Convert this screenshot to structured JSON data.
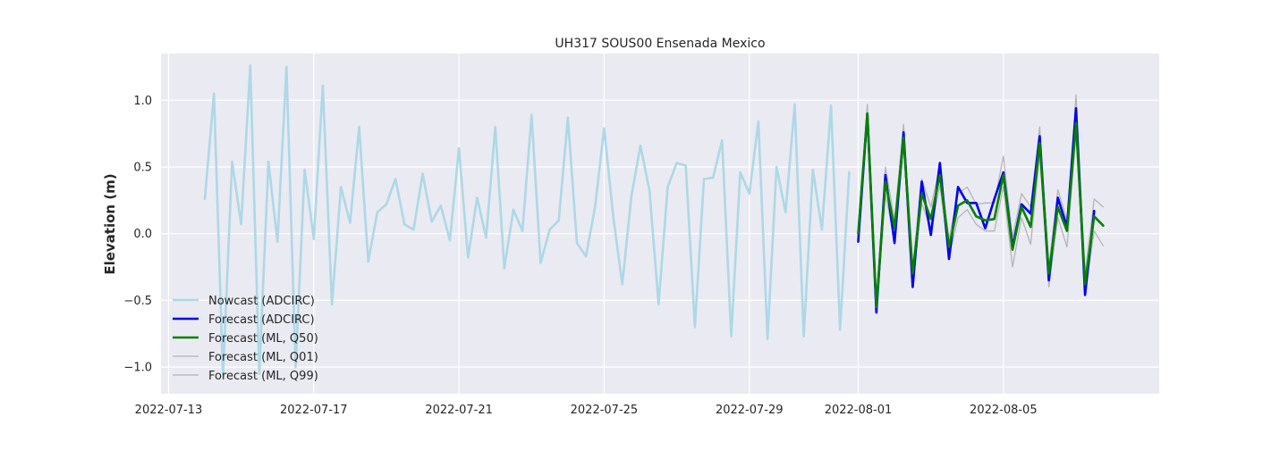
{
  "chart_data": {
    "type": "line",
    "title": "UH317 SOUS00 Ensenada Mexico",
    "xlabel": "",
    "ylabel": "Elevation (m)",
    "xlim": [
      "2022-07-12T19:00",
      "2022-08-09T07:00"
    ],
    "ylim": [
      -1.2,
      1.35
    ],
    "grid": true,
    "legend_position": "lower-left",
    "x_ticks": [
      "2022-07-13",
      "2022-07-17",
      "2022-07-21",
      "2022-07-25",
      "2022-07-29",
      "2022-08-01",
      "2022-08-05"
    ],
    "y_ticks": [
      1.0,
      0.5,
      0.0,
      -0.5,
      -1.0
    ],
    "y_tick_labels": [
      "1.0",
      "0.5",
      "0.0",
      "−0.5",
      "−1.0"
    ],
    "colors": {
      "nowcast": "#add8e6",
      "forecast_adcirc": "#0000ee",
      "forecast_q50": "#008000",
      "forecast_q01": "#b5b5b5",
      "forecast_q99": "#b5b5b5",
      "plot_background": "#eaeaf2",
      "grid": "#ffffff"
    },
    "series": [
      {
        "name": "Nowcast (ADCIRC)",
        "key": "nowcast",
        "x": [
          "2022-07-14T00:00",
          "2022-07-14T06:00",
          "2022-07-14T12:00",
          "2022-07-14T18:00",
          "2022-07-15T00:00",
          "2022-07-15T06:00",
          "2022-07-15T12:00",
          "2022-07-15T18:00",
          "2022-07-16T00:00",
          "2022-07-16T06:00",
          "2022-07-16T12:00",
          "2022-07-16T18:00",
          "2022-07-17T00:00",
          "2022-07-17T06:00",
          "2022-07-17T12:00",
          "2022-07-17T18:00",
          "2022-07-18T00:00",
          "2022-07-18T06:00",
          "2022-07-18T12:00",
          "2022-07-18T18:00",
          "2022-07-19T00:00",
          "2022-07-19T06:00",
          "2022-07-19T12:00",
          "2022-07-19T18:00",
          "2022-07-20T00:00",
          "2022-07-20T06:00",
          "2022-07-20T12:00",
          "2022-07-20T18:00",
          "2022-07-21T00:00",
          "2022-07-21T06:00",
          "2022-07-21T12:00",
          "2022-07-21T18:00",
          "2022-07-22T00:00",
          "2022-07-22T06:00",
          "2022-07-22T12:00",
          "2022-07-22T18:00",
          "2022-07-23T00:00",
          "2022-07-23T06:00",
          "2022-07-23T12:00",
          "2022-07-23T18:00",
          "2022-07-24T00:00",
          "2022-07-24T06:00",
          "2022-07-24T12:00",
          "2022-07-24T18:00",
          "2022-07-25T00:00",
          "2022-07-25T06:00",
          "2022-07-25T12:00",
          "2022-07-25T18:00",
          "2022-07-26T00:00",
          "2022-07-26T06:00",
          "2022-07-26T12:00",
          "2022-07-26T18:00",
          "2022-07-27T00:00",
          "2022-07-27T06:00",
          "2022-07-27T12:00",
          "2022-07-27T18:00",
          "2022-07-28T00:00",
          "2022-07-28T06:00",
          "2022-07-28T12:00",
          "2022-07-28T18:00",
          "2022-07-29T00:00",
          "2022-07-29T06:00",
          "2022-07-29T12:00",
          "2022-07-29T18:00",
          "2022-07-30T00:00",
          "2022-07-30T06:00",
          "2022-07-30T12:00",
          "2022-07-30T18:00",
          "2022-07-31T00:00",
          "2022-07-31T06:00",
          "2022-07-31T12:00",
          "2022-07-31T18:00"
        ],
        "y": [
          0.26,
          1.05,
          -1.07,
          0.54,
          0.07,
          1.26,
          -1.05,
          0.54,
          -0.06,
          1.25,
          -1.0,
          0.48,
          -0.04,
          1.11,
          -0.53,
          0.35,
          0.08,
          0.8,
          -0.21,
          0.16,
          0.22,
          0.41,
          0.07,
          0.03,
          0.45,
          0.09,
          0.21,
          -0.05,
          0.64,
          -0.18,
          0.27,
          -0.03,
          0.8,
          -0.26,
          0.18,
          0.02,
          0.89,
          -0.22,
          0.03,
          0.1,
          0.87,
          -0.07,
          -0.17,
          0.2,
          0.79,
          0.13,
          -0.38,
          0.28,
          0.66,
          0.32,
          -0.53,
          0.35,
          0.53,
          0.51,
          -0.7,
          0.41,
          0.42,
          0.7,
          -0.77,
          0.46,
          0.3,
          0.84,
          -0.79,
          0.5,
          0.16,
          0.97,
          -0.77,
          0.48,
          0.03,
          0.96,
          -0.72,
          0.46
        ]
      },
      {
        "name": "Forecast (ADCIRC)",
        "key": "forecast_adcirc",
        "x": [
          "2022-08-01T00:00",
          "2022-08-01T06:00",
          "2022-08-01T12:00",
          "2022-08-01T18:00",
          "2022-08-02T00:00",
          "2022-08-02T06:00",
          "2022-08-02T12:00",
          "2022-08-02T18:00",
          "2022-08-03T00:00",
          "2022-08-03T06:00",
          "2022-08-03T12:00",
          "2022-08-03T18:00",
          "2022-08-04T00:00",
          "2022-08-04T06:00",
          "2022-08-04T12:00",
          "2022-08-04T18:00",
          "2022-08-05T00:00",
          "2022-08-05T06:00",
          "2022-08-05T12:00",
          "2022-08-05T18:00",
          "2022-08-06T00:00",
          "2022-08-06T06:00",
          "2022-08-06T12:00",
          "2022-08-06T18:00",
          "2022-08-07T00:00",
          "2022-08-07T06:00",
          "2022-08-07T12:00",
          "2022-08-07T18:00"
        ],
        "y": [
          -0.06,
          0.9,
          -0.59,
          0.44,
          -0.07,
          0.76,
          -0.4,
          0.39,
          -0.01,
          0.53,
          -0.19,
          0.35,
          0.23,
          0.23,
          0.04,
          0.26,
          0.46,
          -0.1,
          0.22,
          0.15,
          0.73,
          -0.35,
          0.27,
          0.05,
          0.94,
          -0.46,
          0.17,
          null
        ]
      },
      {
        "name": "Forecast (ML, Q50)",
        "key": "forecast_q50",
        "x": [
          "2022-08-01T00:00",
          "2022-08-01T06:00",
          "2022-08-01T12:00",
          "2022-08-01T18:00",
          "2022-08-02T00:00",
          "2022-08-02T06:00",
          "2022-08-02T12:00",
          "2022-08-02T18:00",
          "2022-08-03T00:00",
          "2022-08-03T06:00",
          "2022-08-03T12:00",
          "2022-08-03T18:00",
          "2022-08-04T00:00",
          "2022-08-04T06:00",
          "2022-08-04T12:00",
          "2022-08-04T18:00",
          "2022-08-05T00:00",
          "2022-08-05T06:00",
          "2022-08-05T12:00",
          "2022-08-05T18:00",
          "2022-08-06T00:00",
          "2022-08-06T06:00",
          "2022-08-06T12:00",
          "2022-08-06T18:00",
          "2022-08-07T00:00",
          "2022-08-07T06:00",
          "2022-08-07T12:00",
          "2022-08-07T18:00"
        ],
        "y": [
          0.0,
          0.9,
          -0.55,
          0.39,
          0.04,
          0.72,
          -0.3,
          0.3,
          0.11,
          0.44,
          -0.1,
          0.21,
          0.25,
          0.13,
          0.1,
          0.11,
          0.44,
          -0.12,
          0.2,
          0.05,
          0.68,
          -0.3,
          0.2,
          0.02,
          0.83,
          -0.38,
          0.13,
          0.06
        ]
      },
      {
        "name": "Forecast (ML, Q01)",
        "key": "forecast_q01",
        "x": [
          "2022-08-01T00:00",
          "2022-08-01T06:00",
          "2022-08-01T12:00",
          "2022-08-01T18:00",
          "2022-08-02T00:00",
          "2022-08-02T06:00",
          "2022-08-02T12:00",
          "2022-08-02T18:00",
          "2022-08-03T00:00",
          "2022-08-03T06:00",
          "2022-08-03T12:00",
          "2022-08-03T18:00",
          "2022-08-04T00:00",
          "2022-08-04T06:00",
          "2022-08-04T12:00",
          "2022-08-04T18:00",
          "2022-08-05T00:00",
          "2022-08-05T06:00",
          "2022-08-05T12:00",
          "2022-08-05T18:00",
          "2022-08-06T00:00",
          "2022-08-06T06:00",
          "2022-08-06T12:00",
          "2022-08-06T18:00",
          "2022-08-07T00:00",
          "2022-08-07T06:00",
          "2022-08-07T12:00",
          "2022-08-07T18:00"
        ],
        "y": [
          -0.05,
          0.85,
          -0.6,
          0.3,
          -0.05,
          0.65,
          -0.38,
          0.23,
          0.03,
          0.36,
          -0.17,
          0.12,
          0.18,
          0.07,
          0.02,
          0.02,
          0.35,
          -0.25,
          0.12,
          -0.08,
          0.59,
          -0.4,
          0.12,
          -0.1,
          0.75,
          -0.45,
          0.02,
          -0.09
        ]
      },
      {
        "name": "Forecast (ML, Q99)",
        "key": "forecast_q99",
        "x": [
          "2022-08-01T00:00",
          "2022-08-01T06:00",
          "2022-08-01T12:00",
          "2022-08-01T18:00",
          "2022-08-02T00:00",
          "2022-08-02T06:00",
          "2022-08-02T12:00",
          "2022-08-02T18:00",
          "2022-08-03T00:00",
          "2022-08-03T06:00",
          "2022-08-03T12:00",
          "2022-08-03T18:00",
          "2022-08-04T00:00",
          "2022-08-04T06:00",
          "2022-08-04T12:00",
          "2022-08-04T18:00",
          "2022-08-05T00:00",
          "2022-08-05T06:00",
          "2022-08-05T12:00",
          "2022-08-05T18:00",
          "2022-08-06T00:00",
          "2022-08-06T06:00",
          "2022-08-06T12:00",
          "2022-08-06T18:00",
          "2022-08-07T00:00",
          "2022-08-07T06:00",
          "2022-08-07T12:00",
          "2022-08-07T18:00"
        ],
        "y": [
          0.05,
          0.97,
          -0.5,
          0.5,
          0.1,
          0.82,
          -0.25,
          0.41,
          0.2,
          0.5,
          -0.04,
          0.3,
          0.35,
          0.22,
          0.23,
          0.23,
          0.58,
          -0.03,
          0.3,
          0.2,
          0.8,
          -0.25,
          0.33,
          0.1,
          1.04,
          -0.3,
          0.26,
          0.2
        ]
      }
    ]
  }
}
